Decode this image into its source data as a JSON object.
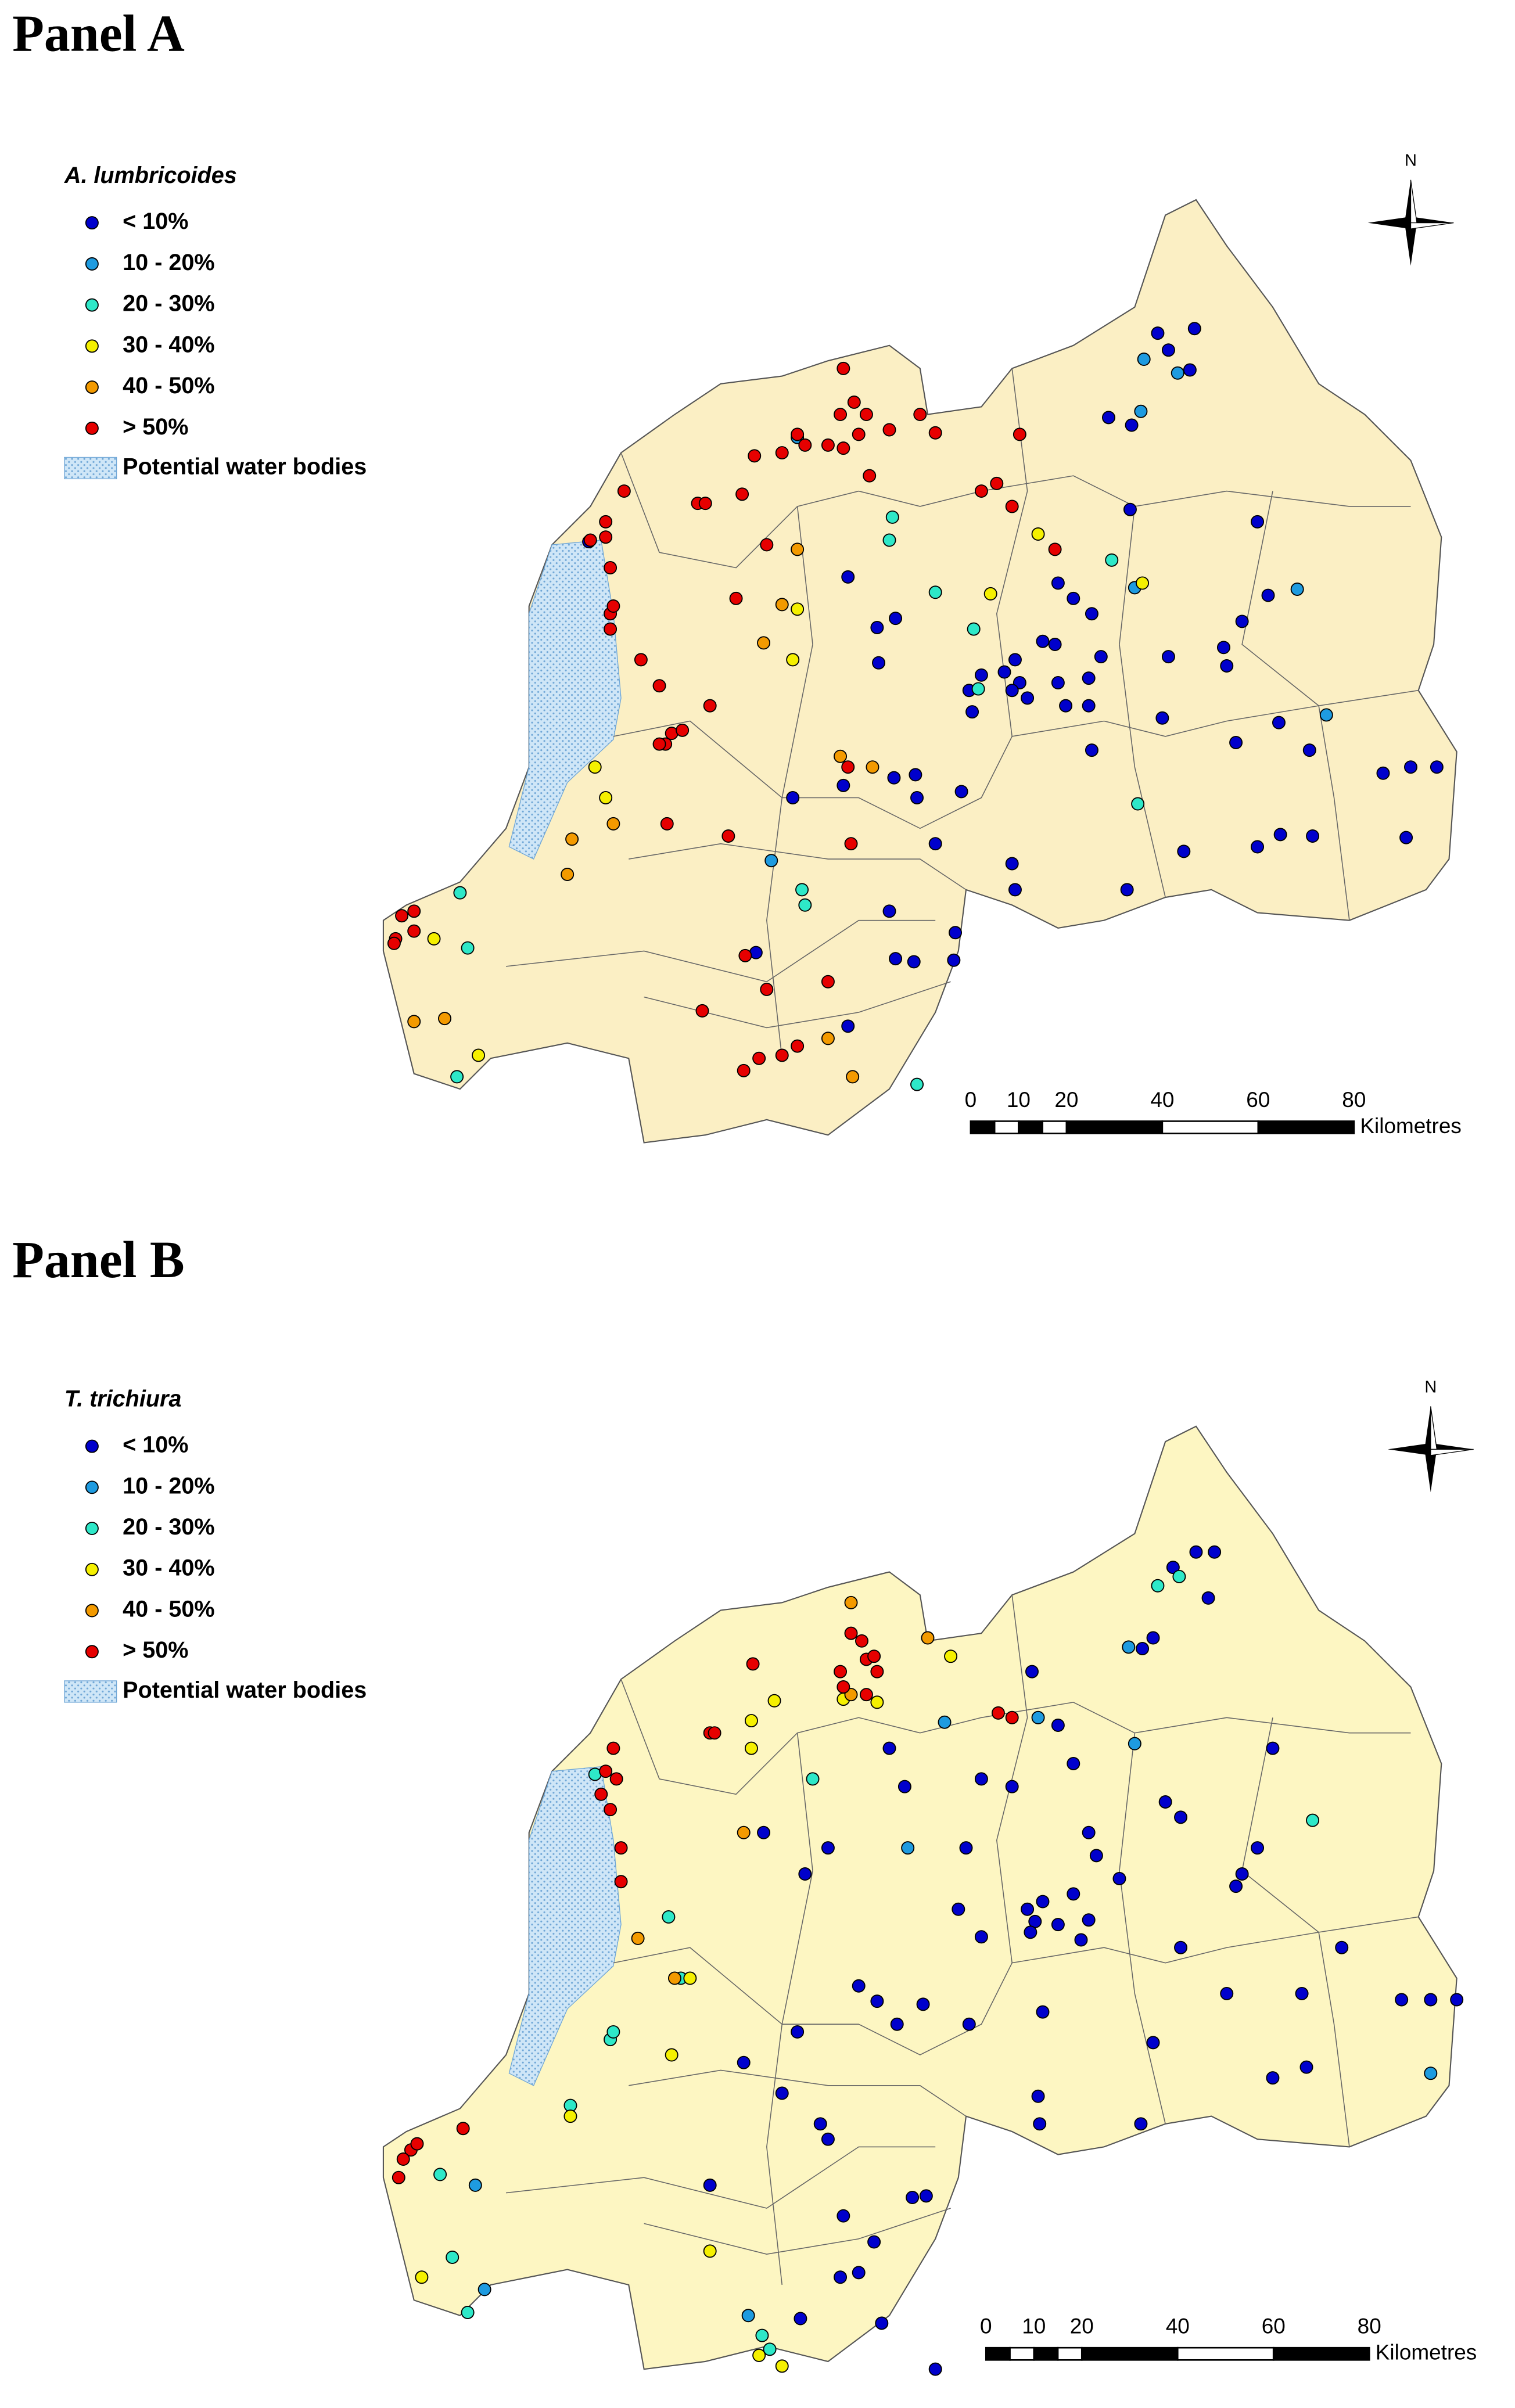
{
  "panels": [
    {
      "title": "Panel A",
      "legend": {
        "title": "A. lumbricoides",
        "items": [
          {
            "label": "< 10%",
            "color": "#0000cc"
          },
          {
            "label": "10 - 20%",
            "color": "#1e9be0"
          },
          {
            "label": "20 - 30%",
            "color": "#2ee8c8"
          },
          {
            "label": "30 - 40%",
            "color": "#f5f000"
          },
          {
            "label": "40 - 50%",
            "color": "#f39a00"
          },
          {
            "label": "> 50%",
            "color": "#e60000"
          }
        ],
        "water": "Potential water bodies"
      },
      "north": "N",
      "scale": {
        "ticks": [
          0,
          10,
          20,
          40,
          60,
          80
        ],
        "unit": "Kilometres"
      }
    },
    {
      "title": "Panel B",
      "legend": {
        "title": "T. trichiura",
        "items": [
          {
            "label": "< 10%",
            "color": "#0000cc"
          },
          {
            "label": "10 - 20%",
            "color": "#1e9be0"
          },
          {
            "label": "20 - 30%",
            "color": "#2ee8c8"
          },
          {
            "label": "30 - 40%",
            "color": "#f5f000"
          },
          {
            "label": "40 - 50%",
            "color": "#f39a00"
          },
          {
            "label": "> 50%",
            "color": "#e60000"
          }
        ],
        "water": "Potential water bodies"
      },
      "north": "N",
      "scale": {
        "ticks": [
          0,
          10,
          20,
          40,
          60,
          80
        ],
        "unit": "Kilometres"
      }
    }
  ]
}
